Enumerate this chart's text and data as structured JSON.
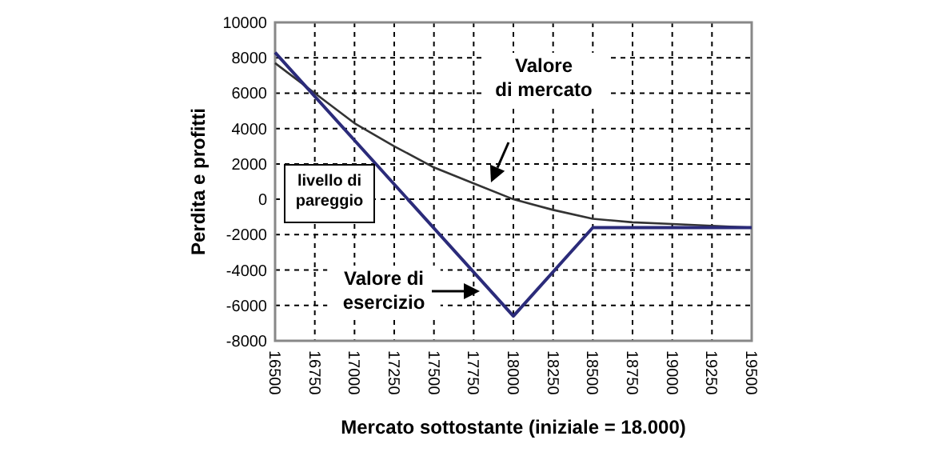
{
  "chart_data": {
    "type": "line",
    "xlabel": "Mercato sottostante (iniziale = 18.000)",
    "ylabel": "Perdita e profitti",
    "xlim": [
      16500,
      19500
    ],
    "xticks": [
      16500,
      16750,
      17000,
      17250,
      17500,
      17750,
      18000,
      18250,
      18500,
      18750,
      19000,
      19250,
      19500
    ],
    "ylim": [
      -8000,
      10000
    ],
    "yticks": [
      -8000,
      -6000,
      -4000,
      -2000,
      0,
      2000,
      4000,
      6000,
      8000,
      10000
    ],
    "grid": true,
    "line_style": "solid",
    "series": [
      {
        "color": "#333333",
        "x": [
          16500,
          16750,
          17000,
          17250,
          17500,
          17750,
          18000,
          18250,
          18500,
          18750,
          19000,
          19250,
          19500
        ],
        "values": [
          7700,
          6000,
          4300,
          3000,
          1800,
          900,
          0,
          -600,
          -1100,
          -1300,
          -1400,
          -1500,
          -1600
        ]
      },
      {
        "color": "#2b2b7a",
        "x": [
          16500,
          18000,
          18500,
          19500
        ],
        "values": [
          8300,
          -6600,
          -1600,
          -1600
        ]
      }
    ],
    "annotations": [
      "Valore\ndi mercato",
      "Valore di\nesercizio",
      "livello di\npareggio"
    ]
  }
}
